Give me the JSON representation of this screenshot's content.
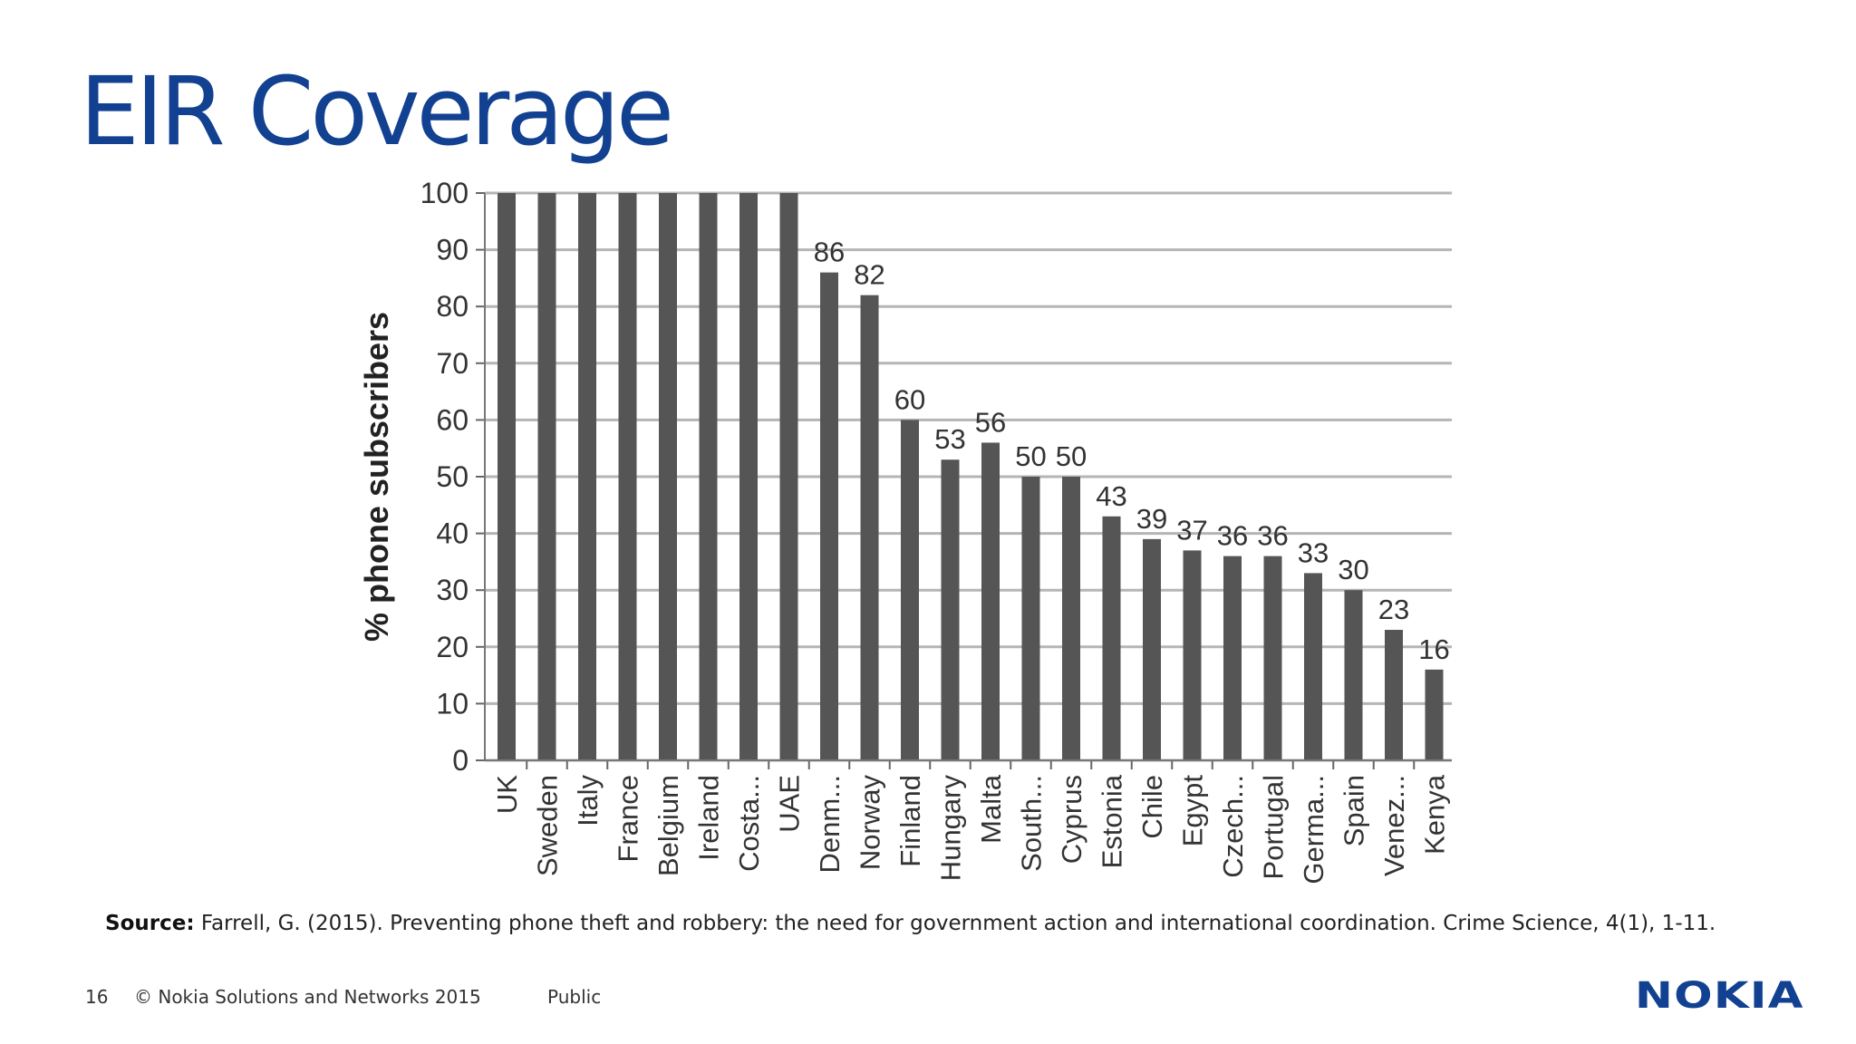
{
  "slide": {
    "title": "EIR Coverage",
    "source_label": "Source:",
    "source_text": " Farrell, G. (2015). Preventing phone theft and robbery: the need for government action and international coordination. Crime Science, 4(1), 1-11.",
    "page_number": "16",
    "copyright": "© Nokia Solutions and Networks 2015",
    "classification": "Public",
    "logo_text": "NOKIA",
    "title_color": "#124191"
  },
  "chart_data": {
    "type": "bar",
    "categories": [
      "UK",
      "Sweden",
      "Italy",
      "France",
      "Belgium",
      "Ireland",
      "Costa...",
      "UAE",
      "Denm...",
      "Norway",
      "Finland",
      "Hungary",
      "Malta",
      "South...",
      "Cyprus",
      "Estonia",
      "Chile",
      "Egypt",
      "Czech...",
      "Portugal",
      "Germa...",
      "Spain",
      "Venez...",
      "Kenya"
    ],
    "values": [
      100,
      100,
      100,
      100,
      100,
      100,
      100,
      100,
      86,
      82,
      60,
      53,
      56,
      50,
      50,
      43,
      39,
      37,
      36,
      36,
      33,
      30,
      23,
      16
    ],
    "data_labels": [
      "",
      "",
      "",
      "",
      "",
      "",
      "",
      "",
      "86",
      "82",
      "60",
      "53",
      "56",
      "50",
      "50",
      "43",
      "39",
      "37",
      "36",
      "36",
      "33",
      "30",
      "23",
      "16"
    ],
    "yticks": [
      0,
      10,
      20,
      30,
      40,
      50,
      60,
      70,
      80,
      90,
      100
    ],
    "ylim": [
      0,
      100
    ],
    "xlabel": "",
    "ylabel": "% phone subscribers",
    "grid": true,
    "bar_color": "#555555",
    "grid_color": "#b5b5b5"
  }
}
